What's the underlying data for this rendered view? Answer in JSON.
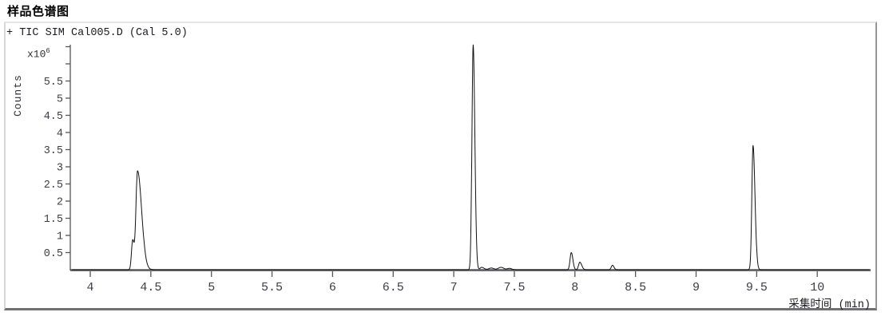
{
  "page": {
    "title": "样品色谱图"
  },
  "panel": {
    "trace_header": "+ TIC SIM Cal005.D (Cal 5.0)"
  },
  "axes": {
    "y_label": "Counts",
    "y_multiplier_base": "x10",
    "y_multiplier_exponent": "6",
    "x_label": "采集时间 (min)"
  },
  "colors": {
    "trace": "#111111",
    "axis": "#55555b",
    "tick_label": "#3d3d46",
    "title": "#000000",
    "panel_background": "#ffffff"
  },
  "chart_data": {
    "type": "line",
    "title": "样品色谱图",
    "series_label": "+ TIC SIM Cal005.D (Cal 5.0)",
    "xlabel": "采集时间 (min)",
    "ylabel": "Counts",
    "y_unit_multiplier": "x10^6",
    "xlim": [
      3.85,
      10.43
    ],
    "ylim": [
      0,
      6.9
    ],
    "grid": false,
    "legend": false,
    "x_ticks": [
      {
        "v": 4,
        "label": "4"
      },
      {
        "v": 4.5,
        "label": "4.5"
      },
      {
        "v": 5,
        "label": "5"
      },
      {
        "v": 5.5,
        "label": "5.5"
      },
      {
        "v": 6,
        "label": "6"
      },
      {
        "v": 6.5,
        "label": "6.5"
      },
      {
        "v": 7,
        "label": "7"
      },
      {
        "v": 7.5,
        "label": "7.5"
      },
      {
        "v": 8,
        "label": "8"
      },
      {
        "v": 8.5,
        "label": "8.5"
      },
      {
        "v": 9,
        "label": "9"
      },
      {
        "v": 9.5,
        "label": "9.5"
      },
      {
        "v": 10,
        "label": "10"
      }
    ],
    "y_ticks": [
      {
        "v": 0.5,
        "label": "0.5"
      },
      {
        "v": 1,
        "label": "1"
      },
      {
        "v": 1.5,
        "label": "1.5"
      },
      {
        "v": 2,
        "label": "2"
      },
      {
        "v": 2.5,
        "label": "2.5"
      },
      {
        "v": 3,
        "label": "3"
      },
      {
        "v": 3.5,
        "label": "3.5"
      },
      {
        "v": 4,
        "label": "4"
      },
      {
        "v": 4.5,
        "label": "4.5"
      },
      {
        "v": 5,
        "label": "5"
      },
      {
        "v": 5.5,
        "label": "5.5"
      },
      {
        "v": 6,
        "label": ""
      },
      {
        "v": 6.5,
        "label": ""
      }
    ],
    "baseline_value": 0,
    "peaks": [
      {
        "rt": 4.35,
        "height": 0.85,
        "sigma_lead": 0.01,
        "sigma_tail": 0.012,
        "note": "leading shoulder"
      },
      {
        "rt": 4.39,
        "height": 2.88,
        "sigma_lead": 0.013,
        "sigma_tail": 0.034,
        "note": "tailing peak"
      },
      {
        "rt": 7.16,
        "height": 6.55,
        "sigma_lead": 0.01,
        "sigma_tail": 0.014,
        "note": "tallest peak"
      },
      {
        "rt": 7.23,
        "height": 0.07,
        "sigma_lead": 0.012,
        "sigma_tail": 0.02,
        "note": "baseline blip"
      },
      {
        "rt": 7.31,
        "height": 0.05,
        "sigma_lead": 0.02,
        "sigma_tail": 0.02,
        "note": "baseline blip"
      },
      {
        "rt": 7.39,
        "height": 0.07,
        "sigma_lead": 0.022,
        "sigma_tail": 0.022,
        "note": "baseline blip"
      },
      {
        "rt": 7.46,
        "height": 0.04,
        "sigma_lead": 0.018,
        "sigma_tail": 0.018,
        "note": "baseline blip"
      },
      {
        "rt": 7.97,
        "height": 0.5,
        "sigma_lead": 0.01,
        "sigma_tail": 0.013,
        "note": "small peak"
      },
      {
        "rt": 8.04,
        "height": 0.22,
        "sigma_lead": 0.01,
        "sigma_tail": 0.016,
        "note": "small peak"
      },
      {
        "rt": 8.31,
        "height": 0.13,
        "sigma_lead": 0.01,
        "sigma_tail": 0.012,
        "note": "tiny peak"
      },
      {
        "rt": 9.47,
        "height": 3.62,
        "sigma_lead": 0.01,
        "sigma_tail": 0.016,
        "note": "sharp peak"
      }
    ]
  }
}
